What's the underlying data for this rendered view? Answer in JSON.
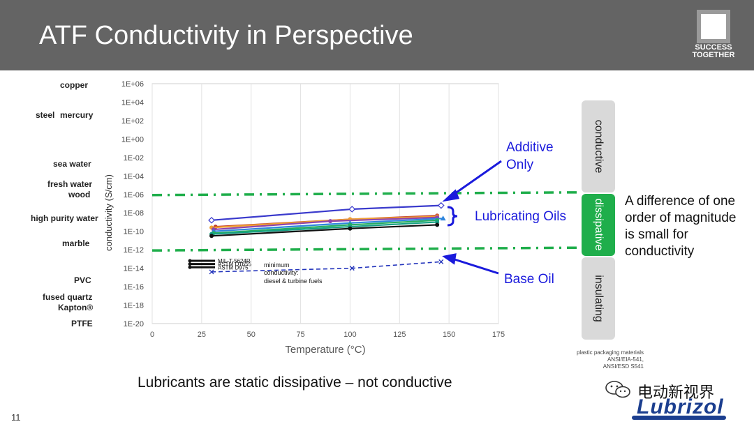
{
  "header": {
    "title": "ATF Conductivity in Perspective"
  },
  "logo": {
    "line1": "SUCCESS",
    "line2": "TOGETHER"
  },
  "materials": {
    "copper": "copper",
    "steel": "steel",
    "mercury": "mercury",
    "sea_water": "sea water",
    "fresh_water": "fresh water",
    "wood": "wood",
    "high_purity_water": "high purity water",
    "marble": "marble",
    "pvc": "PVC",
    "fused_quartz": "fused quartz",
    "kapton": "Kapton®",
    "ptfe": "PTFE"
  },
  "bands": {
    "conductive": "conductive",
    "dissipative": "dissipative",
    "insulating": "insulating"
  },
  "annotations": {
    "additive_line1": "Additive",
    "additive_line2": "Only",
    "lubricating_oils": "Lubricating Oils",
    "base_oil": "Base Oil",
    "note_line1": "A difference of one",
    "note_line2": "order of magnitude",
    "note_line3": "is small for",
    "note_line4": "conductivity"
  },
  "bottom_text": "Lubricants are static dissipative – not conductive",
  "slide_number": "11",
  "standards": {
    "line1": "plastic packaging materials",
    "line2": "ANSI/EIA-541,",
    "line3": "ANSI/ESD S541"
  },
  "watermark": {
    "text": "电动新视界"
  },
  "brand": {
    "name": "Lubrizol"
  },
  "colors": {
    "header_bg": "#646464",
    "conductive_band": "#d9d9d9",
    "dissipative_band": "#1fae4b",
    "insulating_band": "#d9d9d9",
    "threshold_line": "#1fae4b",
    "annotation_blue": "#1a1adc",
    "brand_blue": "#1b3e8f"
  },
  "chart_data": {
    "type": "line",
    "xlabel": "Temperature (°C)",
    "ylabel": "conductivity (S/cm)",
    "xlim": [
      0,
      175
    ],
    "x_ticks": [
      "0",
      "25",
      "50",
      "75",
      "100",
      "125",
      "150",
      "175"
    ],
    "y_scale": "log",
    "ylim_exp": [
      -20,
      6
    ],
    "y_ticks": [
      "1E+06",
      "1E+04",
      "1E+02",
      "1E+00",
      "1E-02",
      "1E-04",
      "1E-06",
      "1E-08",
      "1E-10",
      "1E-12",
      "1E-14",
      "1E-16",
      "1E-18",
      "1E-20"
    ],
    "grid": "vertical",
    "thresholds_exp": [
      -6,
      -12
    ],
    "series": [
      {
        "color": "#3a3acc",
        "marker": "diamond-open",
        "x": [
          30,
          101,
          146
        ],
        "y_exp": [
          -8.8,
          -7.6,
          -7.2
        ]
      },
      {
        "color": "#c0392b",
        "marker": "circle",
        "x": [
          32,
          100,
          144
        ],
        "y_exp": [
          -9.5,
          -8.7,
          -8.3
        ]
      },
      {
        "color": "#f0a030",
        "marker": "circle",
        "x": [
          30,
          100,
          144
        ],
        "y_exp": [
          -9.6,
          -8.7,
          -8.4
        ]
      },
      {
        "color": "#8e44ad",
        "marker": "circle",
        "x": [
          31,
          90,
          144
        ],
        "y_exp": [
          -9.8,
          -8.9,
          -8.5
        ]
      },
      {
        "color": "#2e86de",
        "marker": "triangle",
        "x": [
          31,
          100,
          147
        ],
        "y_exp": [
          -10.0,
          -9.1,
          -8.6
        ]
      },
      {
        "color": "#27ae60",
        "marker": "circle",
        "x": [
          31,
          100,
          144
        ],
        "y_exp": [
          -10.2,
          -9.3,
          -8.8
        ]
      },
      {
        "color": "#16a085",
        "marker": "circle",
        "x": [
          30,
          100,
          144
        ],
        "y_exp": [
          -10.3,
          -9.5,
          -9.0
        ]
      },
      {
        "color": "#111111",
        "marker": "circle",
        "x": [
          30,
          100,
          144
        ],
        "y_exp": [
          -10.5,
          -9.7,
          -9.3
        ]
      },
      {
        "name": "Base Oil",
        "color": "#2233bb",
        "marker": "x",
        "dashed": true,
        "x": [
          30,
          101,
          146
        ],
        "y_exp": [
          -14.4,
          -14.0,
          -13.3
        ]
      }
    ],
    "specs": [
      {
        "label": "MIL-T-5624R",
        "y_exp": -13.2
      },
      {
        "label": "ASTM D1655",
        "y_exp": -13.55
      },
      {
        "label": "ASTM D975",
        "y_exp": -13.9
      }
    ],
    "spec_note": [
      "minimum",
      "conductivity:",
      "diesel & turbine fuels"
    ]
  }
}
